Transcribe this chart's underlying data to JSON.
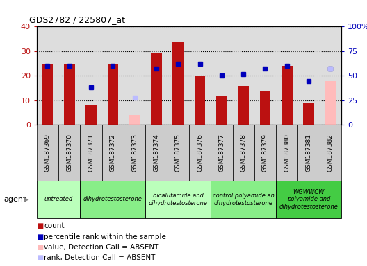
{
  "title": "GDS2782 / 225807_at",
  "samples": [
    "GSM187369",
    "GSM187370",
    "GSM187371",
    "GSM187372",
    "GSM187373",
    "GSM187374",
    "GSM187375",
    "GSM187376",
    "GSM187377",
    "GSM187378",
    "GSM187379",
    "GSM187380",
    "GSM187381",
    "GSM187382"
  ],
  "count_values": [
    25,
    25,
    8,
    25,
    null,
    29,
    34,
    20,
    12,
    16,
    14,
    24,
    9,
    null
  ],
  "rank_values": [
    60,
    60,
    38,
    60,
    null,
    57,
    62,
    62,
    50,
    52,
    57,
    60,
    45,
    57
  ],
  "absent_value_values": [
    null,
    null,
    null,
    null,
    4,
    null,
    null,
    null,
    null,
    null,
    null,
    null,
    null,
    18
  ],
  "absent_rank_values": [
    null,
    null,
    null,
    null,
    28,
    null,
    null,
    null,
    null,
    null,
    null,
    null,
    null,
    57
  ],
  "groups": [
    {
      "label": "untreated",
      "start": 0,
      "end": 2,
      "color": "#bbffbb"
    },
    {
      "label": "dihydrotestosterone",
      "start": 2,
      "end": 5,
      "color": "#88ee88"
    },
    {
      "label": "bicalutamide and\ndihydrotestosterone",
      "start": 5,
      "end": 8,
      "color": "#bbffbb"
    },
    {
      "label": "control polyamide an\ndihydrotestosterone",
      "start": 8,
      "end": 11,
      "color": "#88ee88"
    },
    {
      "label": "WGWWCW\npolyamide and\ndihydrotestosterone",
      "start": 11,
      "end": 14,
      "color": "#44cc44"
    }
  ],
  "ylim_left": [
    0,
    40
  ],
  "ylim_right": [
    0,
    100
  ],
  "yticks_left": [
    0,
    10,
    20,
    30,
    40
  ],
  "ytick_labels_left": [
    "0",
    "10",
    "20",
    "30",
    "40"
  ],
  "yticks_right": [
    0,
    25,
    50,
    75,
    100
  ],
  "ytick_labels_right": [
    "0",
    "25",
    "50",
    "75",
    "100%"
  ],
  "count_color": "#bb1111",
  "rank_color": "#0000bb",
  "absent_value_color": "#ffbbbb",
  "absent_rank_color": "#bbbbff",
  "bar_width": 0.5,
  "grid_color": "#000000",
  "plot_bg_color": "#dddddd",
  "xticklabel_bg": "#cccccc"
}
